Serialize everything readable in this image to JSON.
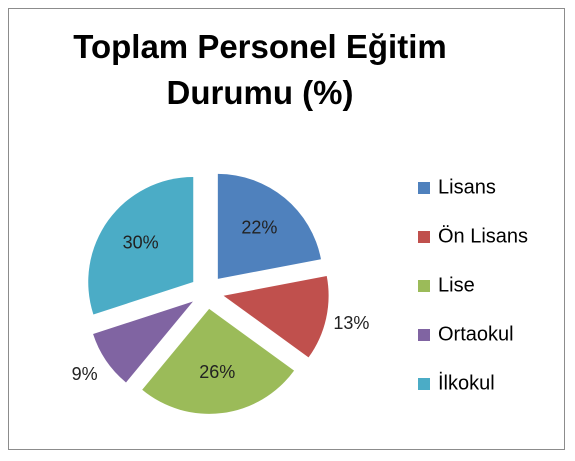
{
  "chart_data": {
    "type": "pie",
    "title": "Toplam Personel Eğitim Durumu (%)",
    "categories": [
      "Lisans",
      "Ön Lisans",
      "Lise",
      "Ortaokul",
      "İlkokul"
    ],
    "values": [
      22,
      13,
      26,
      9,
      30
    ],
    "value_labels": [
      "22%",
      "13%",
      "26%",
      "9%",
      "30%"
    ],
    "colors": [
      "#4f81bd",
      "#c0504d",
      "#9bbb59",
      "#8064a2",
      "#4bacc6"
    ],
    "legend": "right"
  }
}
